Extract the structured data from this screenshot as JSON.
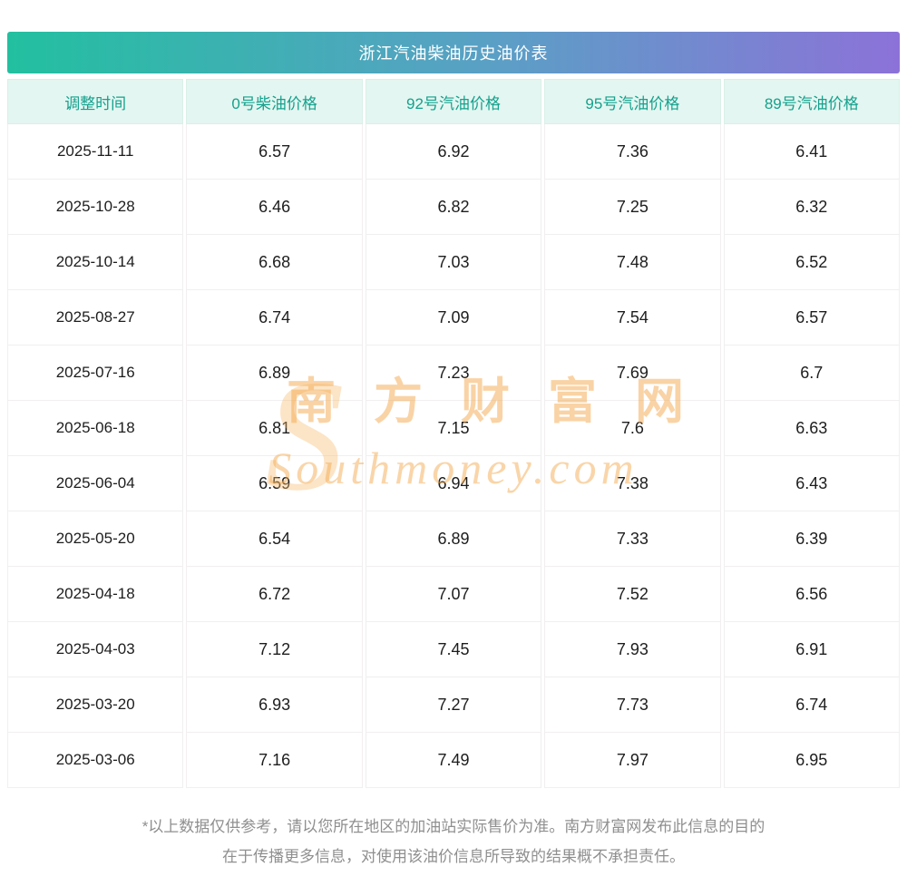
{
  "chart_data": {
    "type": "table",
    "title": "浙江汽油柴油历史油价表",
    "columns": [
      "调整时间",
      "0号柴油价格",
      "92号汽油价格",
      "95号汽油价格",
      "89号汽油价格"
    ],
    "rows": [
      [
        "2025-11-11",
        "6.57",
        "6.92",
        "7.36",
        "6.41"
      ],
      [
        "2025-10-28",
        "6.46",
        "6.82",
        "7.25",
        "6.32"
      ],
      [
        "2025-10-14",
        "6.68",
        "7.03",
        "7.48",
        "6.52"
      ],
      [
        "2025-08-27",
        "6.74",
        "7.09",
        "7.54",
        "6.57"
      ],
      [
        "2025-07-16",
        "6.89",
        "7.23",
        "7.69",
        "6.7"
      ],
      [
        "2025-06-18",
        "6.81",
        "7.15",
        "7.6",
        "6.63"
      ],
      [
        "2025-06-04",
        "6.59",
        "6.94",
        "7.38",
        "6.43"
      ],
      [
        "2025-05-20",
        "6.54",
        "6.89",
        "7.33",
        "6.39"
      ],
      [
        "2025-04-18",
        "6.72",
        "7.07",
        "7.52",
        "6.56"
      ],
      [
        "2025-04-03",
        "7.12",
        "7.45",
        "7.93",
        "6.91"
      ],
      [
        "2025-03-20",
        "6.93",
        "7.27",
        "7.73",
        "6.74"
      ],
      [
        "2025-03-06",
        "7.16",
        "7.49",
        "7.97",
        "6.95"
      ]
    ]
  },
  "watermark": {
    "initial": "S",
    "cn": "南方财富网",
    "en": "Southmoney.com"
  },
  "footer": {
    "line1": "*以上数据仅供参考，请以您所在地区的加油站实际售价为准。南方财富网发布此信息的目的",
    "line2": "在于传播更多信息，对使用该油价信息所导致的结果概不承担责任。"
  },
  "colors": {
    "gradient_start": "#22c0a0",
    "gradient_end": "#8c72d8",
    "header_bg": "#e4f6f1",
    "header_text": "#14a18d",
    "body_text": "#1d1d1d",
    "footer_text": "#8f8f8f",
    "watermark": "#f3a74c"
  }
}
